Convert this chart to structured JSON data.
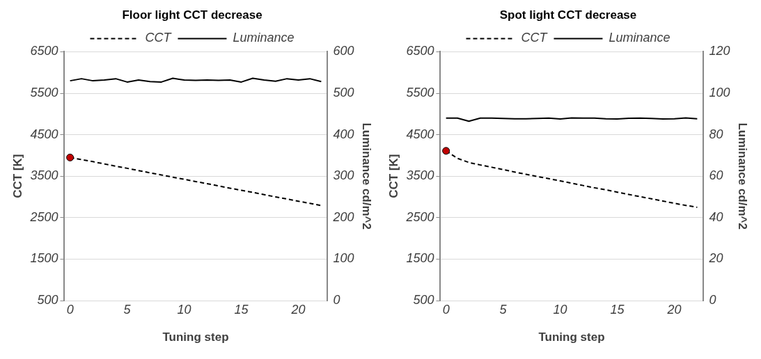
{
  "chart_data": [
    {
      "type": "line",
      "title": "Floor light CCT decrease",
      "xlabel": "Tuning step",
      "ylabel": "CCT [K]",
      "y2label": "Luminance cd/m^2",
      "x": [
        0,
        1,
        2,
        3,
        4,
        5,
        6,
        7,
        8,
        9,
        10,
        11,
        12,
        13,
        14,
        15,
        16,
        17,
        18,
        19,
        20,
        21,
        22
      ],
      "xlim": [
        -0.5,
        22.5
      ],
      "xticks": [
        0,
        5,
        10,
        15,
        20
      ],
      "ylim": [
        500,
        6500
      ],
      "yticks": [
        500,
        1500,
        2500,
        3500,
        4500,
        5500,
        6500
      ],
      "y2lim": [
        0,
        600
      ],
      "y2ticks": [
        0,
        100,
        200,
        300,
        400,
        500,
        600
      ],
      "grid": "y",
      "legend": "top",
      "series": [
        {
          "name": "CCT",
          "color": "#000000",
          "line_style": "dashed",
          "marker": "none",
          "values": [
            3950,
            3900,
            3850,
            3795,
            3740,
            3690,
            3635,
            3580,
            3530,
            3475,
            3425,
            3370,
            3320,
            3265,
            3210,
            3160,
            3110,
            3055,
            3000,
            2950,
            2895,
            2845,
            2790
          ]
        },
        {
          "name": "Luminance",
          "color": "#000000",
          "line_style": "solid",
          "marker": "none",
          "axis": "y2",
          "values": [
            530,
            535,
            530,
            532,
            535,
            527,
            532,
            528,
            527,
            536,
            532,
            531,
            532,
            531,
            532,
            527,
            536,
            532,
            529,
            535,
            532,
            535,
            528
          ]
        },
        {
          "type": "scatter",
          "color": "#c00000",
          "marker": "circle",
          "x": [
            0
          ],
          "values": [
            3950
          ]
        }
      ]
    },
    {
      "type": "line",
      "title": "Spot light CCT decrease",
      "xlabel": "Tuning step",
      "ylabel": "CCT [K]",
      "y2label": "Luminance cd/m^2",
      "x": [
        0,
        1,
        2,
        3,
        4,
        5,
        6,
        7,
        8,
        9,
        10,
        11,
        12,
        13,
        14,
        15,
        16,
        17,
        18,
        19,
        20,
        21,
        22
      ],
      "xlim": [
        -0.5,
        22.5
      ],
      "xticks": [
        0,
        5,
        10,
        15,
        20
      ],
      "ylim": [
        500,
        6500
      ],
      "yticks": [
        500,
        1500,
        2500,
        3500,
        4500,
        5500,
        6500
      ],
      "y2lim": [
        0,
        120
      ],
      "y2ticks": [
        0,
        20,
        40,
        60,
        80,
        100,
        120
      ],
      "grid": "y",
      "legend": "top",
      "series": [
        {
          "name": "CCT",
          "color": "#000000",
          "line_style": "dashed",
          "marker": "none",
          "values": [
            4110,
            3930,
            3830,
            3770,
            3715,
            3660,
            3600,
            3545,
            3490,
            3440,
            3385,
            3330,
            3275,
            3220,
            3170,
            3115,
            3060,
            3005,
            2955,
            2900,
            2845,
            2795,
            2750
          ]
        },
        {
          "name": "Luminance",
          "color": "#000000",
          "line_style": "solid",
          "marker": "none",
          "axis": "y2",
          "values": [
            88,
            88,
            86.5,
            88,
            88,
            87.8,
            87.7,
            87.7,
            87.8,
            88,
            87.6,
            88.1,
            88,
            88,
            87.7,
            87.6,
            87.9,
            88,
            87.8,
            87.6,
            87.7,
            88.1,
            87.7
          ]
        },
        {
          "type": "scatter",
          "color": "#c00000",
          "marker": "circle",
          "x": [
            0
          ],
          "values": [
            4110
          ]
        }
      ]
    }
  ]
}
